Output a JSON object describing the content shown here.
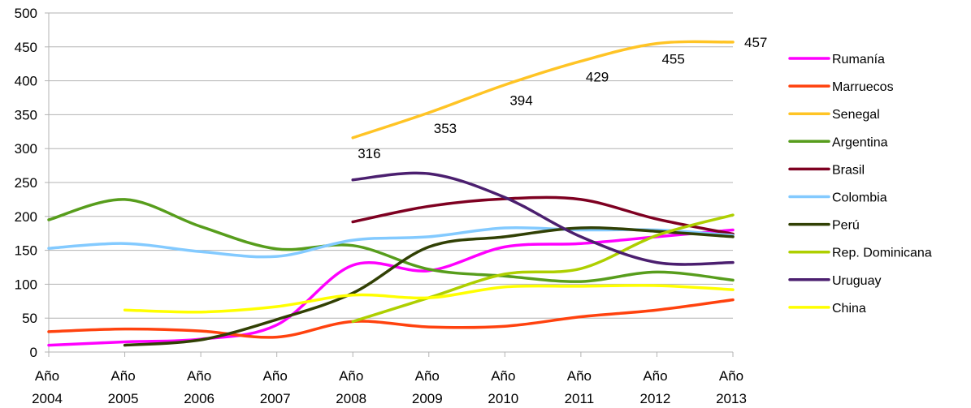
{
  "chart_data": {
    "type": "line",
    "title": "",
    "xlabel": "",
    "ylabel": "",
    "x": [
      2004,
      2005,
      2006,
      2007,
      2008,
      2009,
      2010,
      2011,
      2012,
      2013
    ],
    "x_tick_labels": [
      {
        "top": "Año",
        "bottom": "2004"
      },
      {
        "top": "Año",
        "bottom": "2005"
      },
      {
        "top": "Año",
        "bottom": "2006"
      },
      {
        "top": "Año",
        "bottom": "2007"
      },
      {
        "top": "Año",
        "bottom": "2008"
      },
      {
        "top": "Año",
        "bottom": "2009"
      },
      {
        "top": "Año",
        "bottom": "2010"
      },
      {
        "top": "Año",
        "bottom": "2011"
      },
      {
        "top": "Año",
        "bottom": "2012"
      },
      {
        "top": "Año",
        "bottom": "2013"
      }
    ],
    "ylim": [
      0,
      500
    ],
    "y_ticks": [
      0,
      50,
      100,
      150,
      200,
      250,
      300,
      350,
      400,
      450,
      500
    ],
    "grid": "horizontal",
    "legend_position": "right",
    "series": [
      {
        "name": "Rumanía",
        "color": "#ff00ff",
        "values": [
          10,
          15,
          19,
          40,
          128,
          120,
          155,
          160,
          170,
          180
        ]
      },
      {
        "name": "Marruecos",
        "color": "#ff420e",
        "values": [
          30,
          34,
          31,
          22,
          45,
          37,
          38,
          52,
          62,
          77
        ]
      },
      {
        "name": "Senegal",
        "color": "#ffc425",
        "values": [
          null,
          null,
          null,
          null,
          316,
          353,
          394,
          429,
          455,
          457
        ],
        "data_labels": [
          null,
          null,
          null,
          null,
          "316",
          "353",
          "394",
          "429",
          "455",
          "457"
        ]
      },
      {
        "name": "Argentina",
        "color": "#579d1c",
        "values": [
          195,
          225,
          185,
          152,
          157,
          122,
          112,
          104,
          118,
          106
        ]
      },
      {
        "name": "Brasil",
        "color": "#7e0021",
        "values": [
          null,
          null,
          null,
          null,
          192,
          215,
          226,
          225,
          196,
          174
        ]
      },
      {
        "name": "Colombia",
        "color": "#83caff",
        "values": [
          153,
          160,
          148,
          141,
          165,
          170,
          183,
          180,
          180,
          172
        ]
      },
      {
        "name": "Perú",
        "color": "#314004",
        "values": [
          null,
          10,
          18,
          48,
          87,
          155,
          170,
          183,
          178,
          170
        ]
      },
      {
        "name": "Rep. Dominicana",
        "color": "#aecf00",
        "values": [
          null,
          null,
          null,
          null,
          45,
          80,
          115,
          123,
          172,
          202
        ]
      },
      {
        "name": "Uruguay",
        "color": "#4b1f6f",
        "values": [
          null,
          null,
          null,
          null,
          254,
          263,
          228,
          170,
          132,
          132
        ]
      },
      {
        "name": "China",
        "color": "#ffff00",
        "values": [
          null,
          62,
          59,
          67,
          84,
          80,
          96,
          97,
          98,
          92
        ]
      }
    ]
  }
}
